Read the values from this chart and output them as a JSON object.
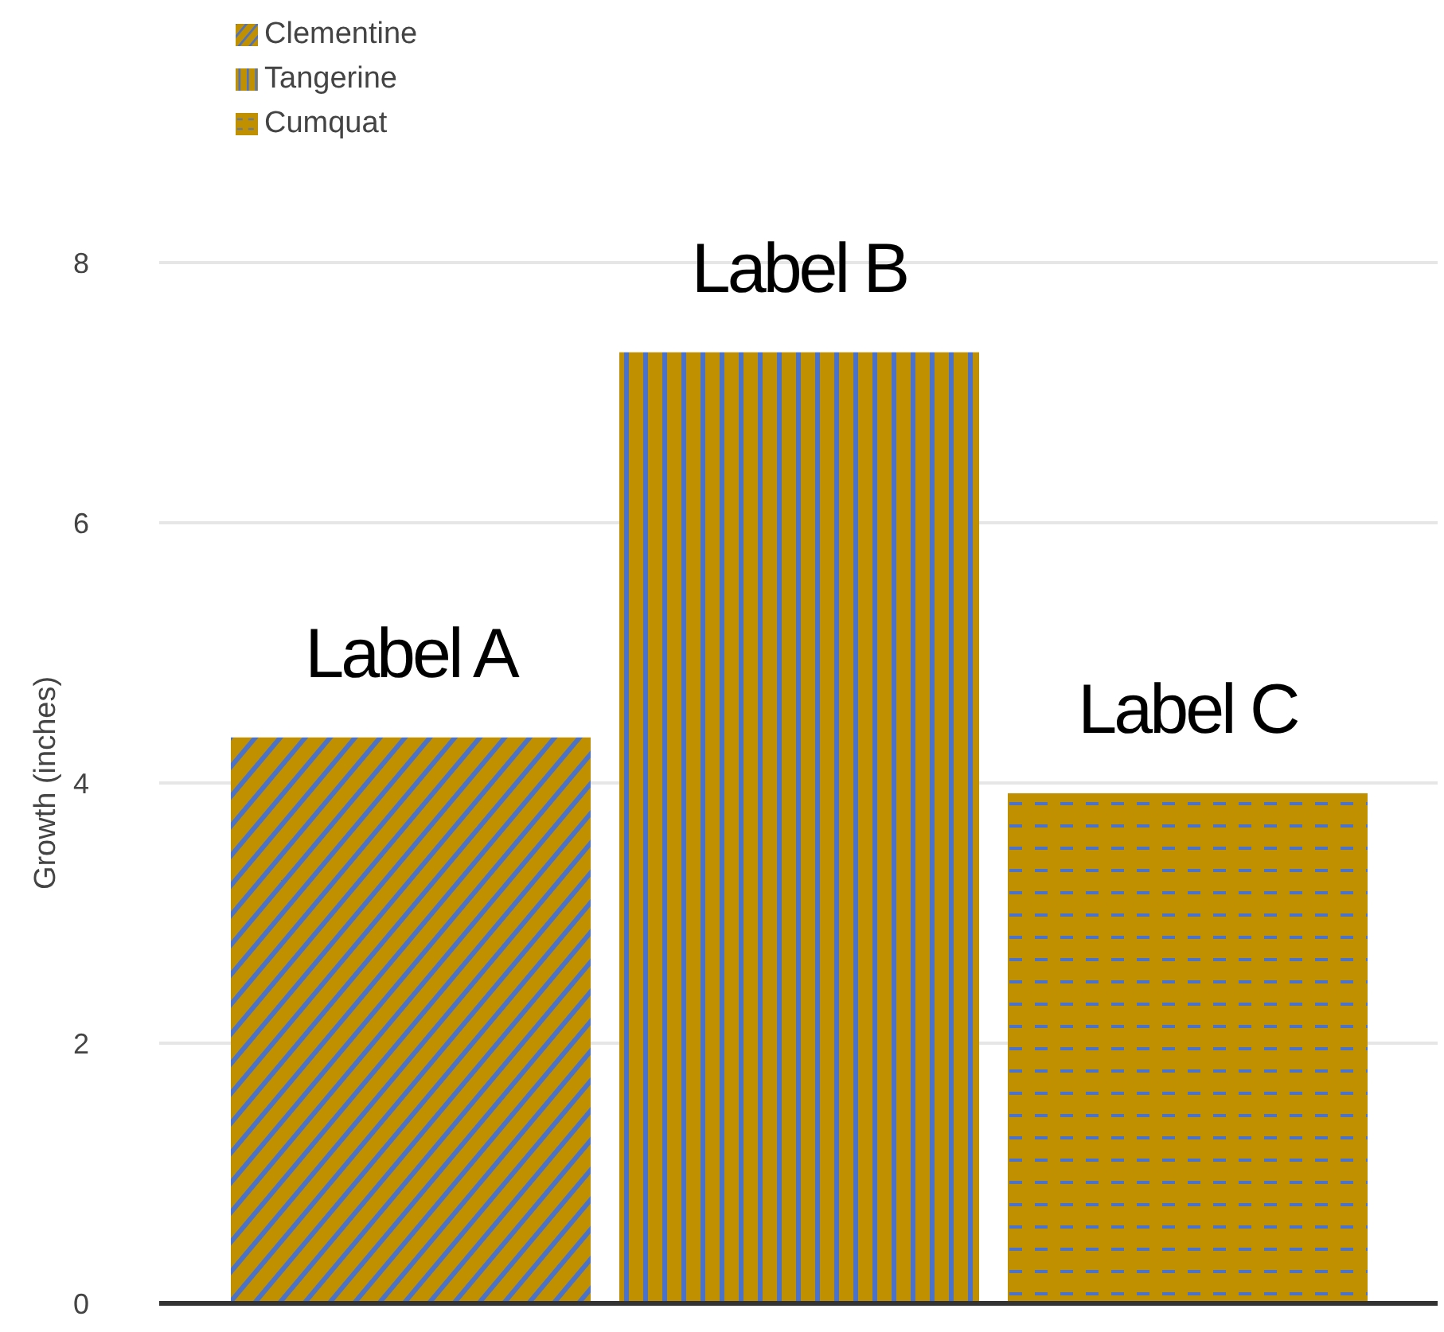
{
  "chart_data": {
    "type": "bar",
    "ylabel": "Growth (inches)",
    "categories": [
      null
    ],
    "series": [
      {
        "name": "Clementine",
        "color": "#c09000",
        "values": [
          4.35
        ]
      },
      {
        "name": "Tangerine",
        "color": "#c09000",
        "values": [
          7.31
        ]
      },
      {
        "name": "Cumquat",
        "color": "#c09000",
        "values": [
          3.92
        ]
      }
    ],
    "annotations": [
      "Label A",
      "Label B",
      "Label C"
    ],
    "ylim": [
      0,
      8
    ],
    "yticks": [
      0,
      2,
      4,
      6,
      8
    ],
    "grid": "y",
    "legend": "top left"
  }
}
